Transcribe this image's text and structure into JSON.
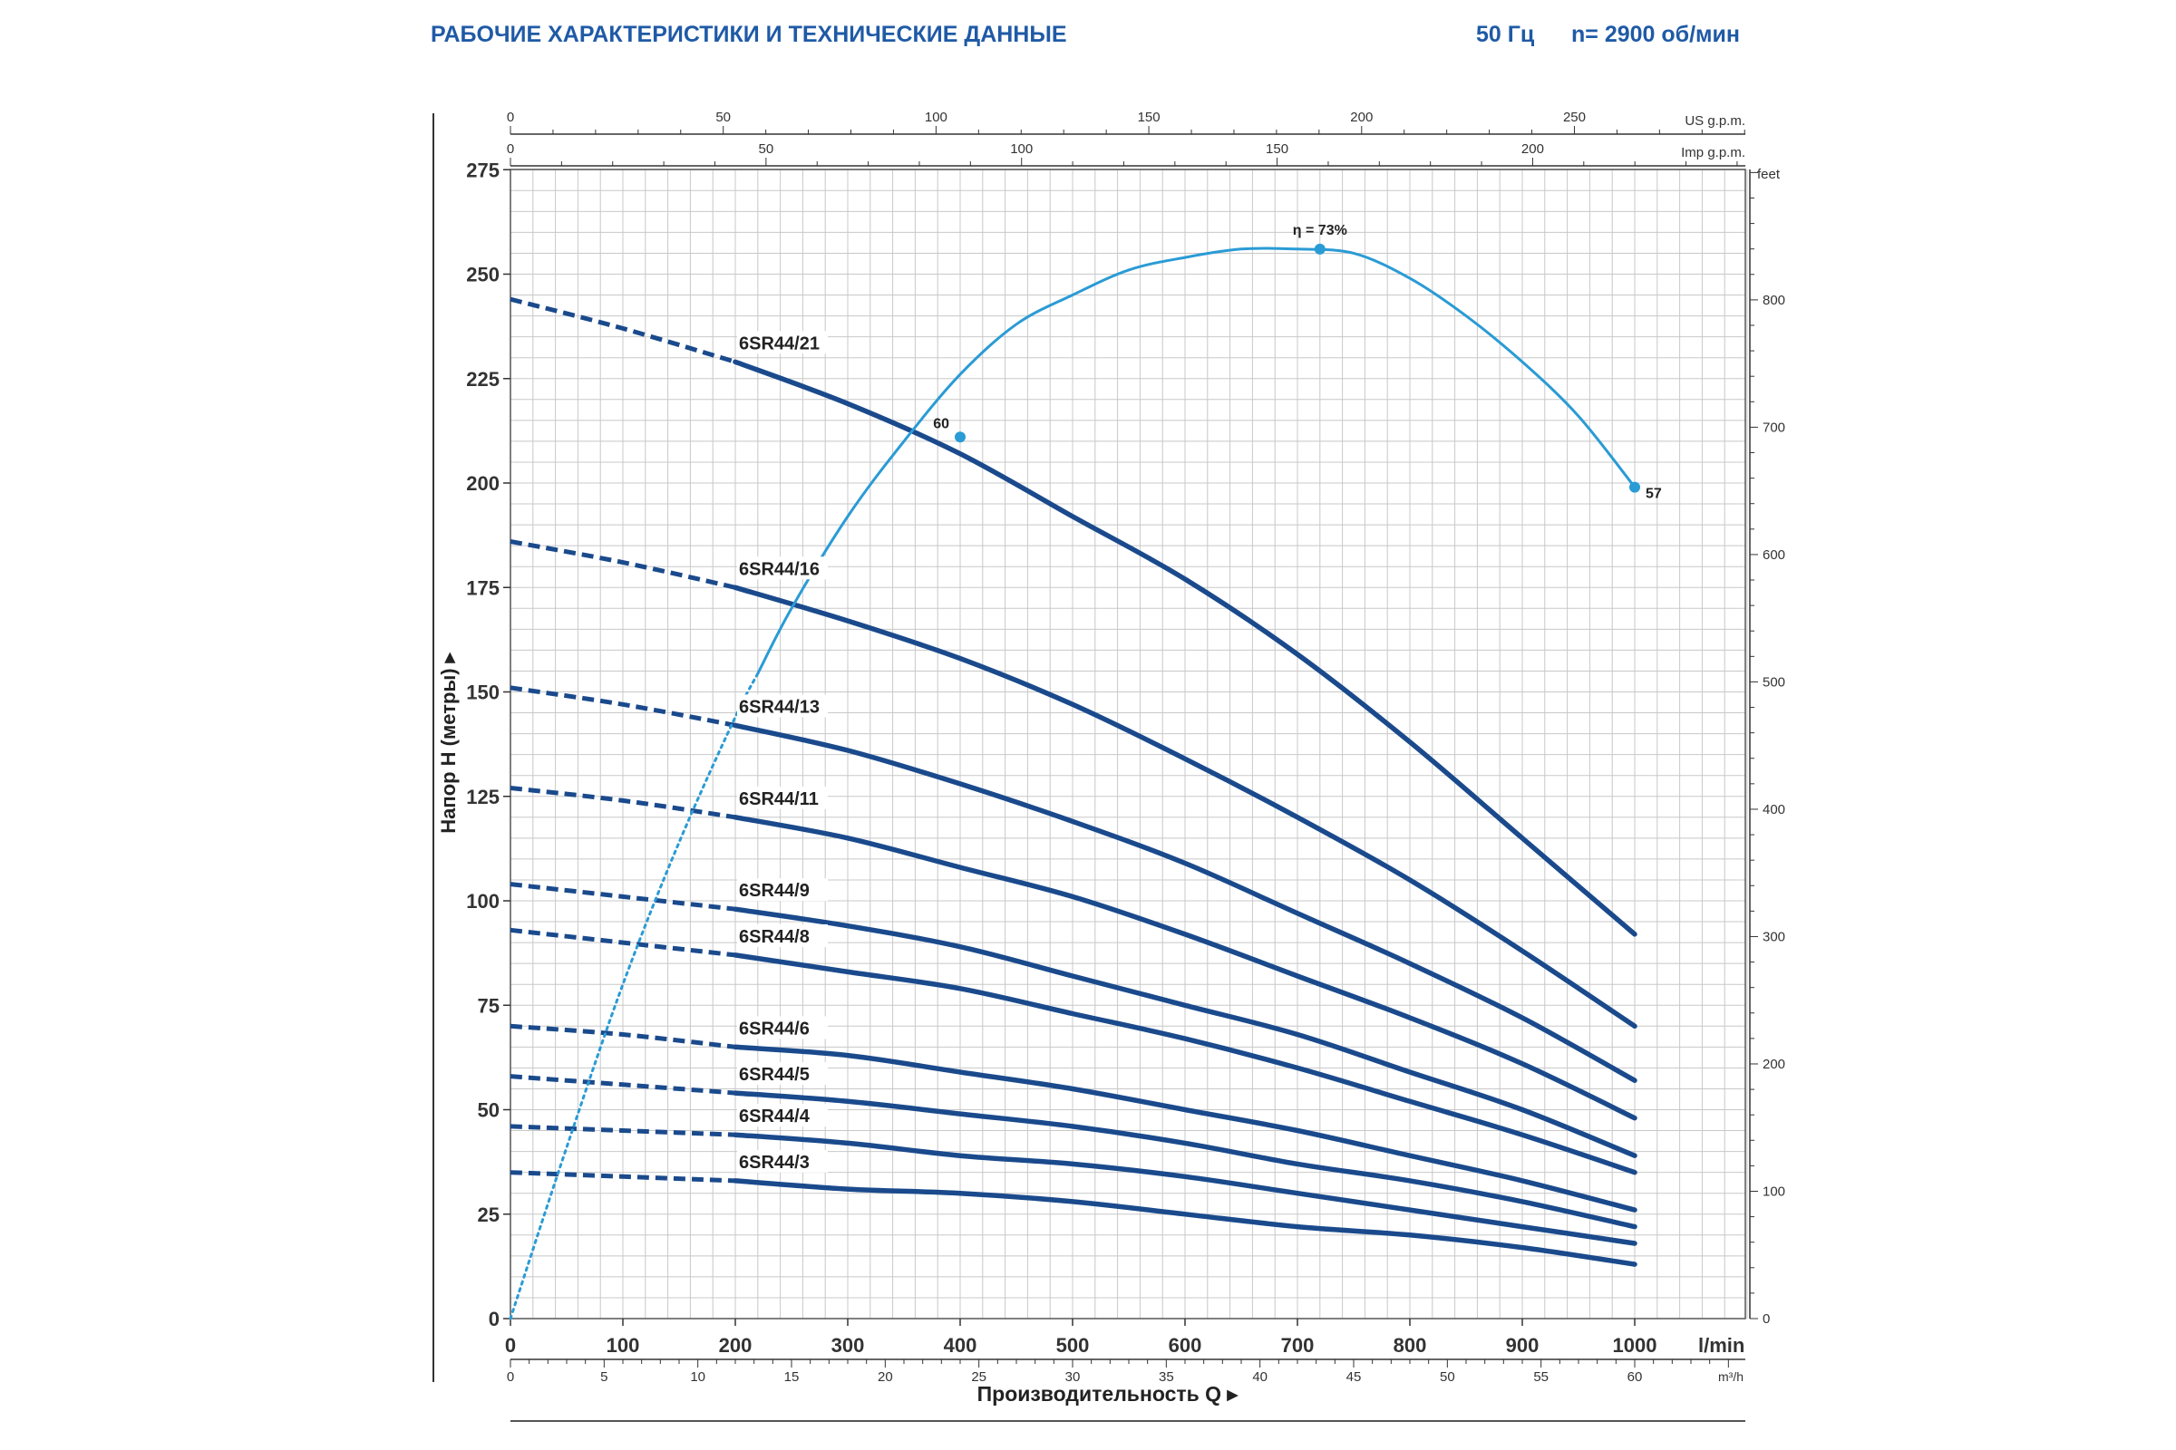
{
  "header": {
    "title": "РАБОЧИЕ ХАРАКТЕРИСТИКИ И ТЕХНИЧЕСКИЕ ДАННЫЕ",
    "frequency": "50 Гц",
    "speed": "n= 2900 об/мин"
  },
  "colors": {
    "pump_curve": "#1a4a8c",
    "efficiency_curve": "#2a9bd5",
    "grid": "#c8c8c8",
    "header_text": "#1f5aa6"
  },
  "chart_data": {
    "type": "line",
    "title": "",
    "xlabel": "Производительность Q",
    "ylabel": "Напор H (метры)",
    "x_unit": "l/min",
    "xlim": [
      0,
      1100
    ],
    "ylim": [
      0,
      275
    ],
    "grid": true,
    "x_ticks": [
      0,
      100,
      200,
      300,
      400,
      500,
      600,
      700,
      800,
      900,
      1000
    ],
    "y_ticks": [
      0,
      25,
      50,
      75,
      100,
      125,
      150,
      175,
      200,
      225,
      250,
      275
    ],
    "secondary_axes": {
      "m3h": {
        "unit": "m³/h",
        "ticks": [
          0,
          5,
          10,
          15,
          20,
          25,
          30,
          35,
          40,
          45,
          50,
          55,
          60
        ]
      },
      "us_gpm": {
        "unit": "US g.p.m.",
        "ticks": [
          0,
          50,
          100,
          150,
          200,
          250
        ]
      },
      "imp_gpm": {
        "unit": "Imp g.p.m.",
        "ticks": [
          0,
          50,
          100,
          150,
          200
        ]
      },
      "feet": {
        "unit": "feet",
        "ticks": [
          0,
          100,
          200,
          300,
          400,
          500,
          600,
          700,
          800
        ]
      }
    },
    "series": [
      {
        "name": "6SR44/21",
        "x": [
          0,
          100,
          200,
          300,
          400,
          500,
          600,
          700,
          800,
          900,
          1000
        ],
        "y": [
          244,
          237,
          229,
          219,
          207,
          192,
          177,
          159,
          138,
          115,
          92
        ]
      },
      {
        "name": "6SR44/16",
        "x": [
          0,
          100,
          200,
          300,
          400,
          500,
          600,
          700,
          800,
          900,
          1000
        ],
        "y": [
          186,
          181,
          175,
          167,
          158,
          147,
          134,
          120,
          105,
          88,
          70
        ]
      },
      {
        "name": "6SR44/13",
        "x": [
          0,
          100,
          200,
          300,
          400,
          500,
          600,
          700,
          800,
          900,
          1000
        ],
        "y": [
          151,
          147,
          142,
          136,
          128,
          119,
          109,
          97,
          85,
          72,
          57
        ]
      },
      {
        "name": "6SR44/11",
        "x": [
          0,
          100,
          200,
          300,
          400,
          500,
          600,
          700,
          800,
          900,
          1000
        ],
        "y": [
          127,
          124,
          120,
          115,
          108,
          101,
          92,
          82,
          72,
          61,
          48
        ]
      },
      {
        "name": "6SR44/9",
        "x": [
          0,
          100,
          200,
          300,
          400,
          500,
          600,
          700,
          800,
          900,
          1000
        ],
        "y": [
          104,
          101,
          98,
          94,
          89,
          82,
          75,
          68,
          59,
          50,
          39
        ]
      },
      {
        "name": "6SR44/8",
        "x": [
          0,
          100,
          200,
          300,
          400,
          500,
          600,
          700,
          800,
          900,
          1000
        ],
        "y": [
          93,
          90,
          87,
          83,
          79,
          73,
          67,
          60,
          52,
          44,
          35
        ]
      },
      {
        "name": "6SR44/6",
        "x": [
          0,
          100,
          200,
          300,
          400,
          500,
          600,
          700,
          800,
          900,
          1000
        ],
        "y": [
          70,
          68,
          65,
          63,
          59,
          55,
          50,
          45,
          39,
          33,
          26
        ]
      },
      {
        "name": "6SR44/5",
        "x": [
          0,
          100,
          200,
          300,
          400,
          500,
          600,
          700,
          800,
          900,
          1000
        ],
        "y": [
          58,
          56,
          54,
          52,
          49,
          46,
          42,
          37,
          33,
          28,
          22
        ]
      },
      {
        "name": "6SR44/4",
        "x": [
          0,
          100,
          200,
          300,
          400,
          500,
          600,
          700,
          800,
          900,
          1000
        ],
        "y": [
          46,
          45,
          44,
          42,
          39,
          37,
          34,
          30,
          26,
          22,
          18
        ]
      },
      {
        "name": "6SR44/3",
        "x": [
          0,
          100,
          200,
          300,
          400,
          500,
          600,
          700,
          800,
          900,
          1000
        ],
        "y": [
          35,
          34,
          33,
          31,
          30,
          28,
          25,
          22,
          20,
          17,
          13
        ]
      }
    ],
    "dashed_to_x": 200,
    "efficiency_curve": {
      "x": [
        0,
        50,
        100,
        150,
        200,
        250,
        300,
        350,
        400,
        450,
        500,
        550,
        600,
        650,
        700,
        750,
        800,
        850,
        900,
        950,
        1000
      ],
      "y": [
        0,
        41,
        80,
        114,
        144,
        170,
        192,
        210,
        226,
        238,
        245,
        251,
        254,
        256,
        256,
        255,
        249,
        240,
        229,
        216,
        199
      ],
      "dotted_to_x": 220,
      "labels": [
        {
          "text": "60",
          "x": 400,
          "y": 211
        },
        {
          "text": "η = 73%",
          "x": 720,
          "y": 256
        },
        {
          "text": "57",
          "x": 1000,
          "y": 199
        }
      ]
    }
  }
}
